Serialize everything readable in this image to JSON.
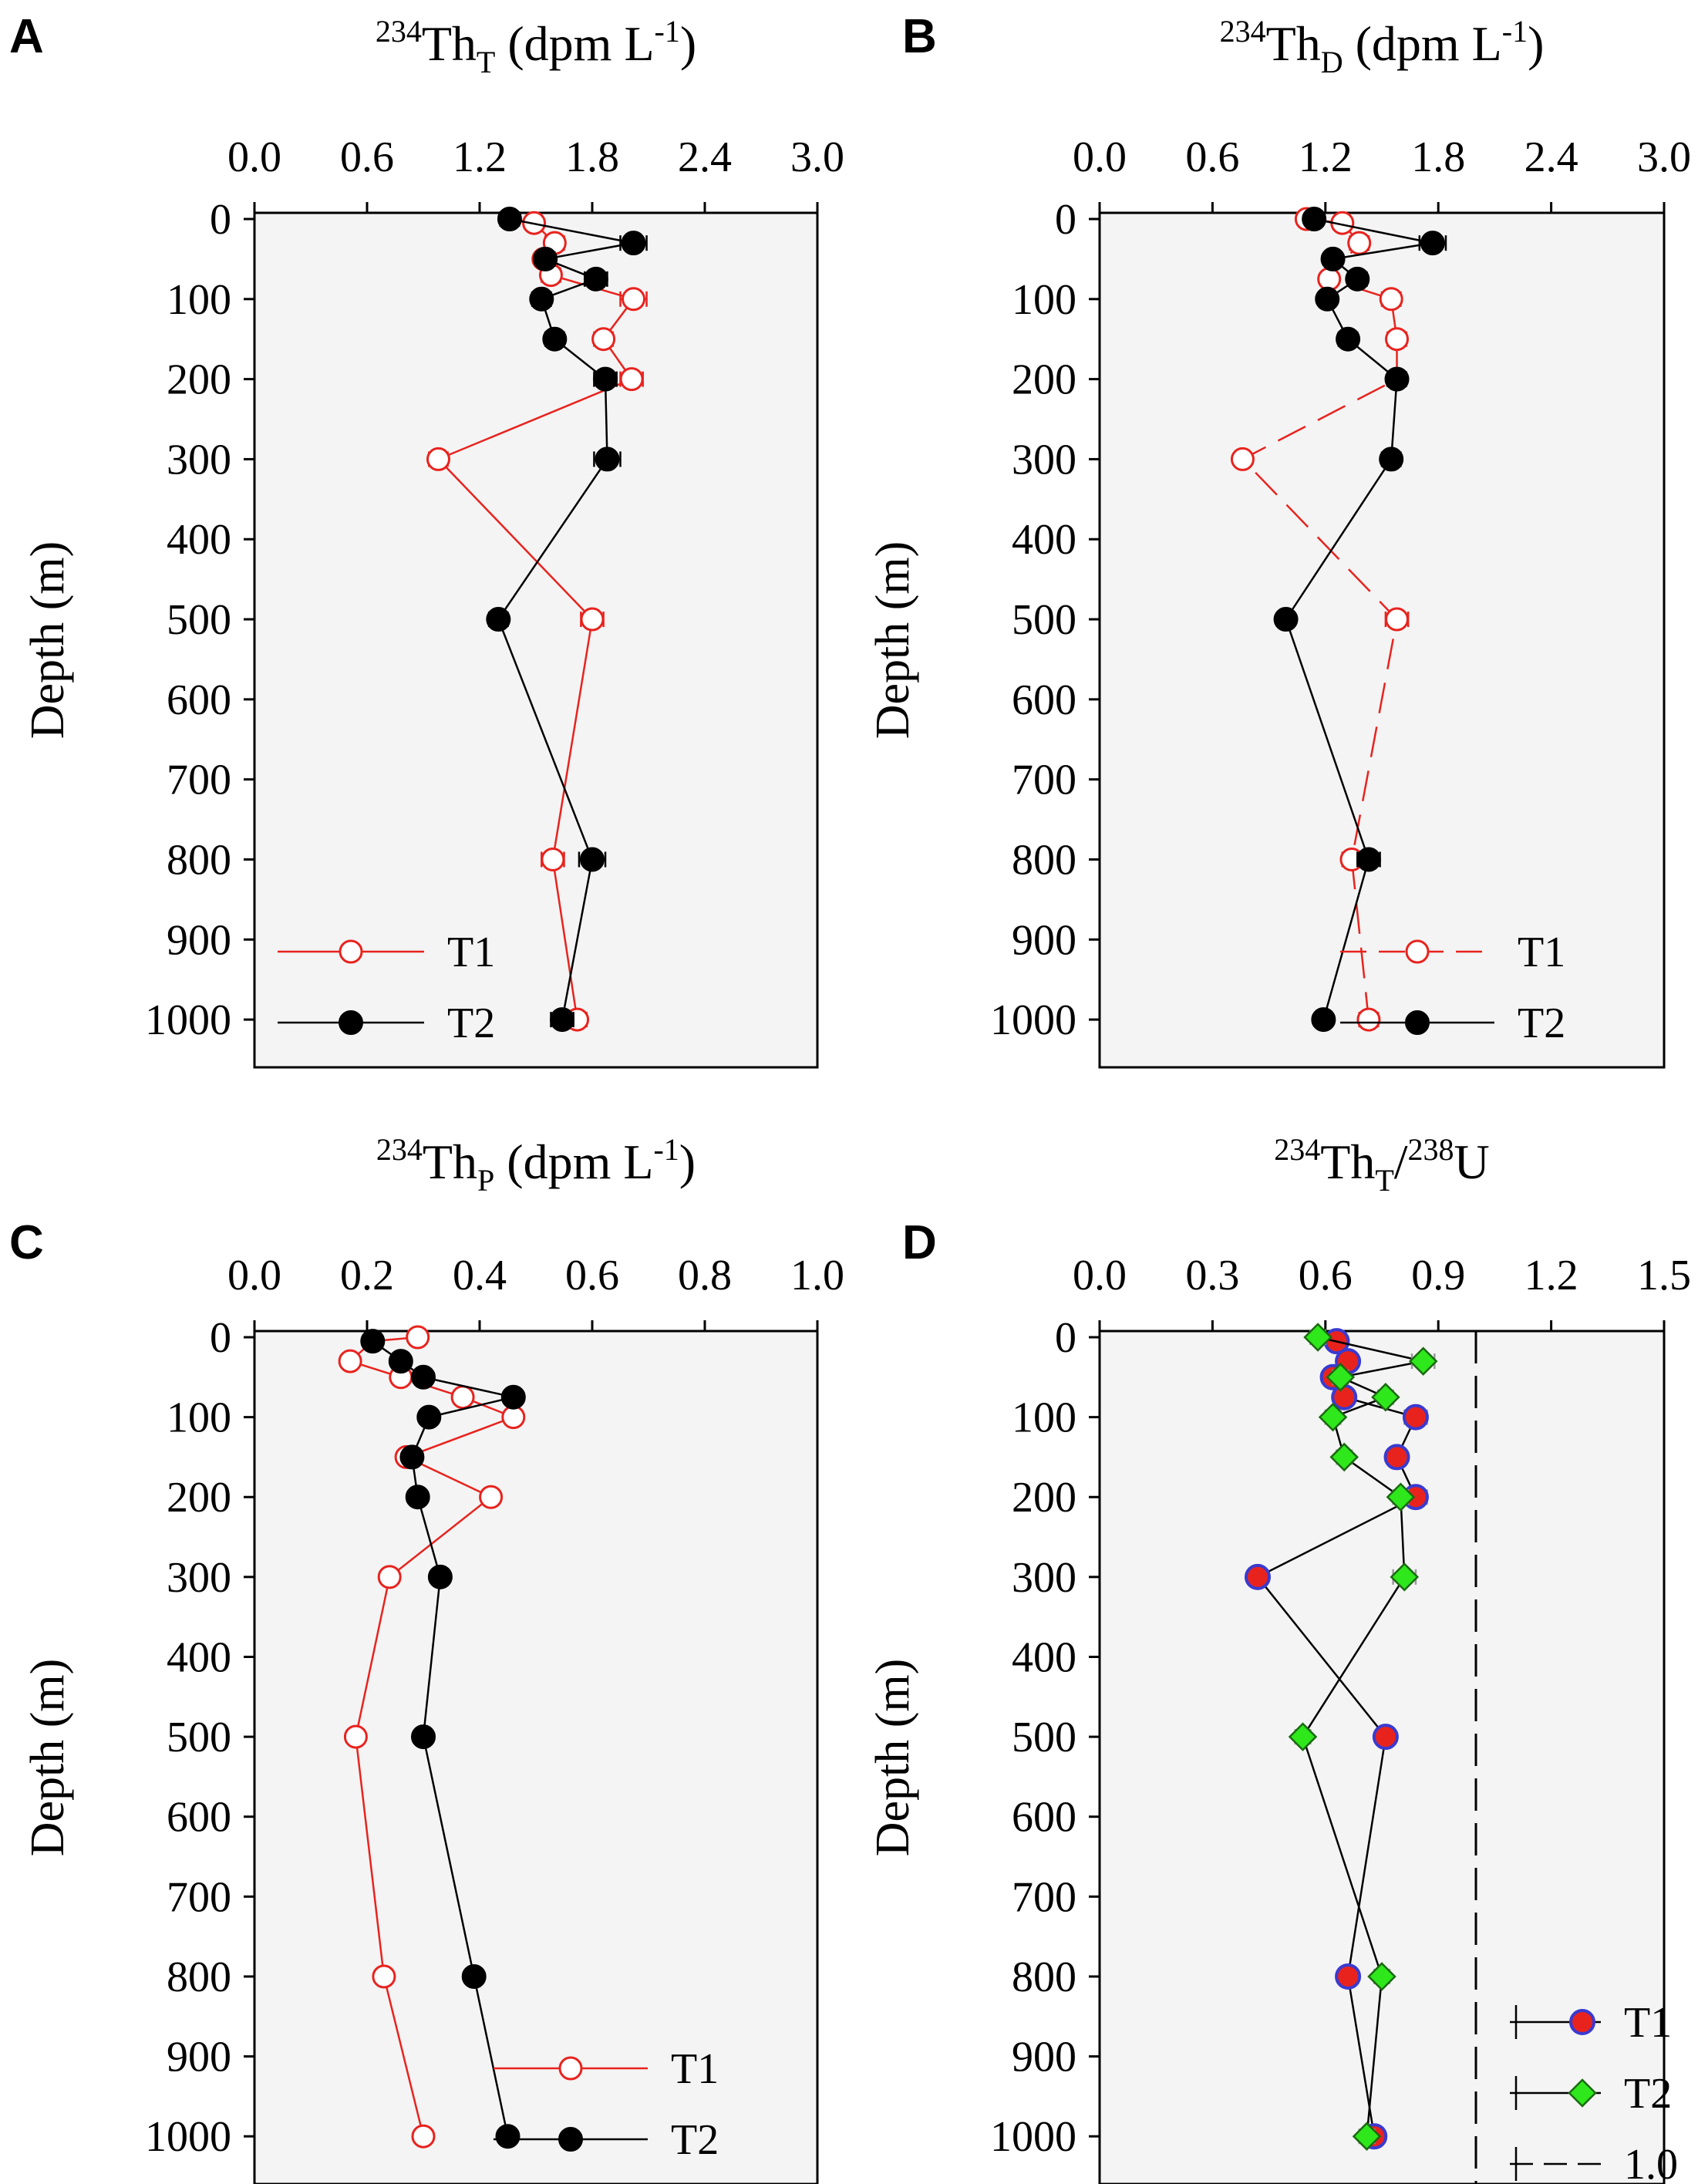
{
  "chart_data": [
    {
      "type": "line",
      "panel": "A",
      "title": {
        "base": "234",
        "sym": "Th",
        "sub": "T",
        "unit_pre": " (dpm L",
        "unit_sup": "-1",
        "unit_post": ")"
      },
      "xlabel": "234ThT (dpm L-1)",
      "ylabel": "Depth (m)",
      "xlim": [
        0,
        3.0
      ],
      "ylim": [
        0,
        1050
      ],
      "xticks": [
        "0.0",
        "0.6",
        "1.2",
        "1.8",
        "2.4",
        "3.0"
      ],
      "xtick_values": [
        0,
        0.6,
        1.2,
        1.8,
        2.4,
        3.0
      ],
      "yticks": [
        "0",
        "100",
        "200",
        "300",
        "400",
        "500",
        "600",
        "700",
        "800",
        "900",
        "1000"
      ],
      "ytick_values": [
        0,
        100,
        200,
        300,
        400,
        500,
        600,
        700,
        800,
        900,
        1000
      ],
      "legend": {
        "position": "bottom-left"
      },
      "series": [
        {
          "name": "T1",
          "color": "#e8231e",
          "marker": "open-circle",
          "dashed": false,
          "depth": [
            0,
            5,
            30,
            50,
            70,
            100,
            150,
            200,
            300,
            500,
            800,
            1000
          ],
          "values": [
            1.36,
            1.49,
            1.6,
            1.54,
            1.58,
            2.02,
            1.86,
            2.01,
            0.98,
            1.8,
            1.59,
            1.72
          ],
          "err": [
            0.04,
            0.04,
            0.05,
            0.04,
            0.05,
            0.07,
            0.05,
            0.06,
            0.05,
            0.06,
            0.06,
            0.05
          ]
        },
        {
          "name": "T2",
          "color": "#000000",
          "marker": "filled-circle",
          "dashed": false,
          "depth": [
            0,
            30,
            50,
            75,
            100,
            150,
            200,
            300,
            500,
            800,
            1000
          ],
          "values": [
            1.36,
            2.02,
            1.55,
            1.82,
            1.53,
            1.6,
            1.87,
            1.88,
            1.3,
            1.8,
            1.64
          ],
          "err": [
            0.05,
            0.07,
            0.05,
            0.06,
            0.05,
            0.05,
            0.06,
            0.07,
            0.05,
            0.07,
            0.06
          ]
        }
      ]
    },
    {
      "type": "line",
      "panel": "B",
      "title": {
        "base": "234",
        "sym": "Th",
        "sub": "D",
        "unit_pre": " (dpm L",
        "unit_sup": "-1",
        "unit_post": ")"
      },
      "xlabel": "234ThD (dpm L-1)",
      "ylabel": "Depth (m)",
      "xlim": [
        0,
        3.0
      ],
      "ylim": [
        0,
        1050
      ],
      "xticks": [
        "0.0",
        "0.6",
        "1.2",
        "1.8",
        "2.4",
        "3.0"
      ],
      "xtick_values": [
        0,
        0.6,
        1.2,
        1.8,
        2.4,
        3.0
      ],
      "yticks": [
        "0",
        "100",
        "200",
        "300",
        "400",
        "500",
        "600",
        "700",
        "800",
        "900",
        "1000"
      ],
      "ytick_values": [
        0,
        100,
        200,
        300,
        400,
        500,
        600,
        700,
        800,
        900,
        1000
      ],
      "legend": {
        "position": "bottom-right"
      },
      "series": [
        {
          "name": "T1",
          "color": "#e8231e",
          "marker": "open-circle",
          "dashed": true,
          "depth": [
            0,
            5,
            30,
            75,
            100,
            150,
            200,
            300,
            500,
            800,
            1000
          ],
          "values": [
            1.1,
            1.29,
            1.38,
            1.22,
            1.55,
            1.58,
            1.58,
            0.76,
            1.58,
            1.34,
            1.43
          ],
          "err": [
            0.04,
            0.04,
            0.05,
            0.04,
            0.05,
            0.05,
            0.05,
            0.04,
            0.06,
            0.05,
            0.05
          ]
        },
        {
          "name": "T2",
          "color": "#000000",
          "marker": "filled-circle",
          "dashed": false,
          "depth": [
            0,
            30,
            50,
            75,
            100,
            150,
            200,
            300,
            500,
            800,
            1000
          ],
          "values": [
            1.14,
            1.77,
            1.24,
            1.37,
            1.21,
            1.32,
            1.58,
            1.55,
            0.99,
            1.43,
            1.19
          ],
          "err": [
            0.04,
            0.07,
            0.04,
            0.05,
            0.04,
            0.05,
            0.05,
            0.05,
            0.04,
            0.06,
            0.04
          ]
        }
      ]
    },
    {
      "type": "line",
      "panel": "C",
      "title": {
        "base": "234",
        "sym": "Th",
        "sub": "P",
        "unit_pre": " (dpm L",
        "unit_sup": "-1",
        "unit_post": ")"
      },
      "xlabel": "234ThP (dpm L-1)",
      "ylabel": "Depth (m)",
      "xlim": [
        0,
        1.0
      ],
      "ylim": [
        0,
        1050
      ],
      "xticks": [
        "0.0",
        "0.2",
        "0.4",
        "0.6",
        "0.8",
        "1.0"
      ],
      "xtick_values": [
        0,
        0.2,
        0.4,
        0.6,
        0.8,
        1.0
      ],
      "yticks": [
        "0",
        "100",
        "200",
        "300",
        "400",
        "500",
        "600",
        "700",
        "800",
        "900",
        "1000"
      ],
      "ytick_values": [
        0,
        100,
        200,
        300,
        400,
        500,
        600,
        700,
        800,
        900,
        1000
      ],
      "legend": {
        "position": "bottom-right"
      },
      "series": [
        {
          "name": "T1",
          "color": "#e8231e",
          "marker": "open-circle",
          "dashed": false,
          "depth": [
            0,
            5,
            30,
            50,
            75,
            100,
            150,
            200,
            300,
            500,
            800,
            1000
          ],
          "values": [
            0.29,
            0.21,
            0.17,
            0.26,
            0.37,
            0.46,
            0.27,
            0.42,
            0.24,
            0.18,
            0.23,
            0.3
          ],
          "err": [
            0.01,
            0.01,
            0.01,
            0.01,
            0.01,
            0.01,
            0.01,
            0.01,
            0.01,
            0.01,
            0.01,
            0.01
          ]
        },
        {
          "name": "T2",
          "color": "#000000",
          "marker": "filled-circle",
          "dashed": false,
          "depth": [
            5,
            30,
            50,
            75,
            100,
            150,
            200,
            300,
            500,
            800,
            1000
          ],
          "values": [
            0.21,
            0.26,
            0.3,
            0.46,
            0.31,
            0.28,
            0.29,
            0.33,
            0.3,
            0.39,
            0.45
          ],
          "err": [
            0.01,
            0.01,
            0.01,
            0.01,
            0.01,
            0.01,
            0.01,
            0.01,
            0.01,
            0.01,
            0.01
          ]
        }
      ]
    },
    {
      "type": "line",
      "panel": "D",
      "title": {
        "base": "234",
        "sym": "Th",
        "sub": "T",
        "sep": "/",
        "base2": "238",
        "sym2": "U"
      },
      "xlabel": "234ThT/238U",
      "ylabel": "Depth (m)",
      "xlim": [
        0,
        1.5
      ],
      "ylim": [
        0,
        1050
      ],
      "xticks": [
        "0.0",
        "0.3",
        "0.6",
        "0.9",
        "1.2",
        "1.5"
      ],
      "xtick_values": [
        0,
        0.3,
        0.6,
        0.9,
        1.2,
        1.5
      ],
      "yticks": [
        "0",
        "100",
        "200",
        "300",
        "400",
        "500",
        "600",
        "700",
        "800",
        "900",
        "1000"
      ],
      "ytick_values": [
        0,
        100,
        200,
        300,
        400,
        500,
        600,
        700,
        800,
        900,
        1000
      ],
      "legend": {
        "position": "bottom-right"
      },
      "reference_line": {
        "name": "1.0",
        "x": 1.0,
        "color": "#000000"
      },
      "series": [
        {
          "name": "T1",
          "color": "#e8231e",
          "edge": "#3a3ad0",
          "marker": "filled-circle",
          "dashed": false,
          "depth": [
            5,
            30,
            50,
            75,
            100,
            150,
            200,
            300,
            500,
            800,
            1000
          ],
          "values": [
            0.63,
            0.66,
            0.62,
            0.65,
            0.84,
            0.79,
            0.84,
            0.42,
            0.76,
            0.66,
            0.73
          ],
          "err": [
            0.02,
            0.02,
            0.02,
            0.02,
            0.03,
            0.02,
            0.03,
            0.02,
            0.02,
            0.02,
            0.02
          ]
        },
        {
          "name": "T2",
          "color": "#2ee81c",
          "edge": "#1a6a10",
          "marker": "diamond",
          "dashed": false,
          "depth": [
            0,
            30,
            50,
            75,
            100,
            150,
            200,
            300,
            500,
            800,
            1000
          ],
          "values": [
            0.58,
            0.86,
            0.64,
            0.76,
            0.62,
            0.65,
            0.8,
            0.81,
            0.54,
            0.75,
            0.71
          ],
          "err": [
            0.02,
            0.03,
            0.02,
            0.02,
            0.02,
            0.02,
            0.02,
            0.03,
            0.02,
            0.02,
            0.02
          ]
        }
      ]
    }
  ]
}
